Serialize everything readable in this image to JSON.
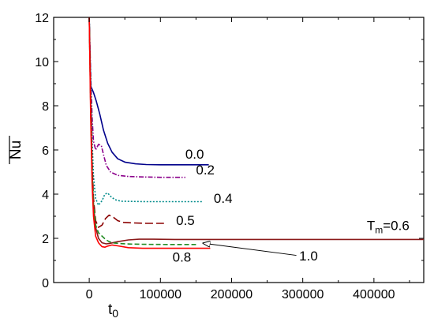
{
  "chart_data": {
    "type": "line",
    "title": "",
    "xlabel": "t",
    "xlabel_subscript": "0",
    "ylabel": "Nu",
    "ylabel_overline": true,
    "xlim": [
      -50000,
      470000
    ],
    "ylim": [
      0,
      12
    ],
    "xticks": [
      0,
      100000,
      200000,
      300000,
      400000
    ],
    "xtick_labels": [
      "0",
      "100000",
      "200000",
      "300000",
      "400000"
    ],
    "yticks": [
      0,
      2,
      4,
      6,
      8,
      10,
      12
    ],
    "ytick_labels": [
      "0",
      "2",
      "4",
      "6",
      "8",
      "10",
      "12"
    ],
    "grid": false,
    "legend": "none (inline labels)",
    "series": [
      {
        "name": "0.0",
        "color": "#00008b",
        "dash": "solid",
        "x": [
          0,
          2000,
          6000,
          10000,
          15000,
          20000,
          26000,
          32000,
          40000,
          50000,
          65000,
          80000,
          100000,
          130000,
          168000
        ],
        "y": [
          12,
          8.9,
          8.6,
          8.2,
          7.6,
          6.9,
          6.3,
          5.9,
          5.6,
          5.45,
          5.37,
          5.34,
          5.33,
          5.33,
          5.33
        ]
      },
      {
        "name": "0.2",
        "color": "#8b008b",
        "dash": "dashdot",
        "x": [
          0,
          2000,
          4000,
          6000,
          9000,
          13000,
          17000,
          20000,
          24000,
          30000,
          40000,
          55000,
          75000,
          100000,
          135000
        ],
        "y": [
          12,
          9.5,
          7.5,
          6.4,
          6.0,
          6.25,
          6.2,
          5.8,
          5.3,
          5.0,
          4.85,
          4.8,
          4.78,
          4.76,
          4.76
        ]
      },
      {
        "name": "0.4",
        "color": "#008b8b",
        "dash": "dotted",
        "x": [
          0,
          2000,
          4000,
          6000,
          9000,
          13000,
          18000,
          22000,
          26000,
          30000,
          36000,
          45000,
          60000,
          80000,
          110000,
          160000
        ],
        "y": [
          12,
          9.0,
          6.5,
          4.8,
          3.8,
          3.5,
          3.7,
          4.0,
          4.05,
          3.9,
          3.75,
          3.68,
          3.67,
          3.66,
          3.66,
          3.66
        ]
      },
      {
        "name": "0.5",
        "color": "#8b0000",
        "dash": "longdash",
        "x": [
          0,
          2000,
          4000,
          6000,
          9000,
          13000,
          18000,
          23000,
          28000,
          34000,
          40000,
          48000,
          60000,
          80000,
          105000
        ],
        "y": [
          12,
          8.5,
          5.5,
          3.8,
          2.8,
          2.5,
          2.6,
          2.9,
          3.05,
          2.95,
          2.8,
          2.72,
          2.7,
          2.68,
          2.68
        ]
      },
      {
        "name": "T_m=0.6",
        "color": "#8b1a1a",
        "dash": "solid",
        "x": [
          0,
          2000,
          4000,
          6000,
          9000,
          13000,
          18000,
          24000,
          30000,
          40000,
          55000,
          70000,
          90000,
          120000,
          200000,
          300000,
          470000
        ],
        "y": [
          12,
          8.0,
          5.0,
          3.5,
          2.5,
          2.0,
          1.8,
          1.75,
          1.78,
          1.85,
          1.93,
          1.96,
          1.96,
          1.95,
          1.95,
          1.95,
          1.95
        ]
      },
      {
        "name": "1.0",
        "color": "#228b22",
        "dash": "dashed",
        "x": [
          0,
          2000,
          4000,
          6000,
          9000,
          13000,
          18000,
          23000,
          28000,
          35000,
          45000,
          60000,
          80000,
          110000,
          150000
        ],
        "y": [
          12,
          8.0,
          5.0,
          3.5,
          2.6,
          2.25,
          2.1,
          1.95,
          1.85,
          1.79,
          1.76,
          1.74,
          1.73,
          1.72,
          1.72
        ]
      },
      {
        "name": "0.8",
        "color": "#ff0000",
        "dash": "solid",
        "x": [
          0,
          2000,
          4000,
          6000,
          9000,
          13000,
          18000,
          22000,
          26000,
          32000,
          40000,
          55000,
          75000,
          100000,
          130000,
          170000
        ],
        "y": [
          12,
          7.5,
          4.5,
          3.0,
          2.1,
          1.8,
          1.62,
          1.6,
          1.65,
          1.7,
          1.66,
          1.58,
          1.55,
          1.55,
          1.55,
          1.55
        ]
      }
    ],
    "annotations": [
      {
        "text": "0.0",
        "x": 135000,
        "y": 5.6
      },
      {
        "text": "0.2",
        "x": 150000,
        "y": 4.9
      },
      {
        "text": "0.4",
        "x": 175000,
        "y": 3.6
      },
      {
        "text": "0.5",
        "x": 122000,
        "y": 2.6
      },
      {
        "text": "T",
        "sub": "m",
        "suffix": "=0.6",
        "x": 390000,
        "y": 2.38
      },
      {
        "text": "1.0",
        "x": 295000,
        "y": 1.0
      },
      {
        "text": "0.8",
        "x": 117000,
        "y": 0.95
      }
    ],
    "arrow": {
      "from": [
        291000,
        1.23
      ],
      "to": [
        160000,
        1.78
      ]
    }
  }
}
